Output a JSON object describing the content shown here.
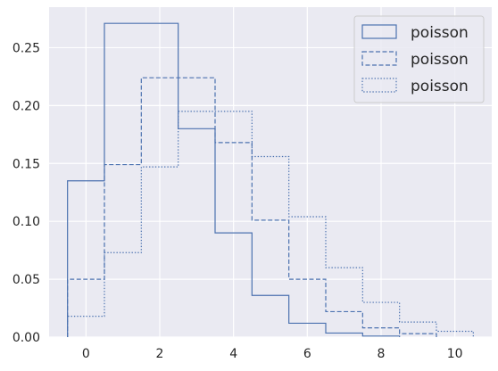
{
  "chart_data": {
    "type": "histogram-step",
    "xlim": [
      -1,
      11
    ],
    "ylim": [
      0,
      0.285
    ],
    "xticks": [
      0,
      2,
      4,
      6,
      8,
      10
    ],
    "yticks": [
      0.0,
      0.05,
      0.1,
      0.15,
      0.2,
      0.25
    ],
    "xtick_labels": [
      "0",
      "2",
      "4",
      "6",
      "8",
      "10"
    ],
    "ytick_labels": [
      "0.00",
      "0.05",
      "0.10",
      "0.15",
      "0.20",
      "0.25"
    ],
    "grid": true,
    "legend_position": "top-right",
    "line_color": "#4c72b0",
    "series": [
      {
        "name": "poisson",
        "linestyle": "solid",
        "edges": [
          -0.5,
          0.5,
          2.5,
          3.5,
          4.5,
          5.5,
          6.5,
          7.5,
          8.5
        ],
        "values": [
          0.135,
          0.271,
          0.18,
          0.09,
          0.036,
          0.012,
          0.0035,
          0.0009
        ]
      },
      {
        "name": "poisson",
        "linestyle": "dashed",
        "edges": [
          -0.5,
          0.5,
          1.5,
          2.5,
          3.5,
          4.5,
          5.5,
          6.5,
          7.5,
          8.5,
          9.5
        ],
        "values": [
          0.05,
          0.149,
          0.224,
          0.224,
          0.168,
          0.101,
          0.05,
          0.022,
          0.008,
          0.003
        ]
      },
      {
        "name": "poisson",
        "linestyle": "dotted",
        "edges": [
          -0.5,
          0.5,
          1.5,
          2.5,
          4.5,
          5.5,
          6.5,
          7.5,
          8.5,
          9.5,
          10.5
        ],
        "values": [
          0.018,
          0.073,
          0.147,
          0.195,
          0.156,
          0.104,
          0.06,
          0.03,
          0.013,
          0.005
        ]
      }
    ]
  }
}
